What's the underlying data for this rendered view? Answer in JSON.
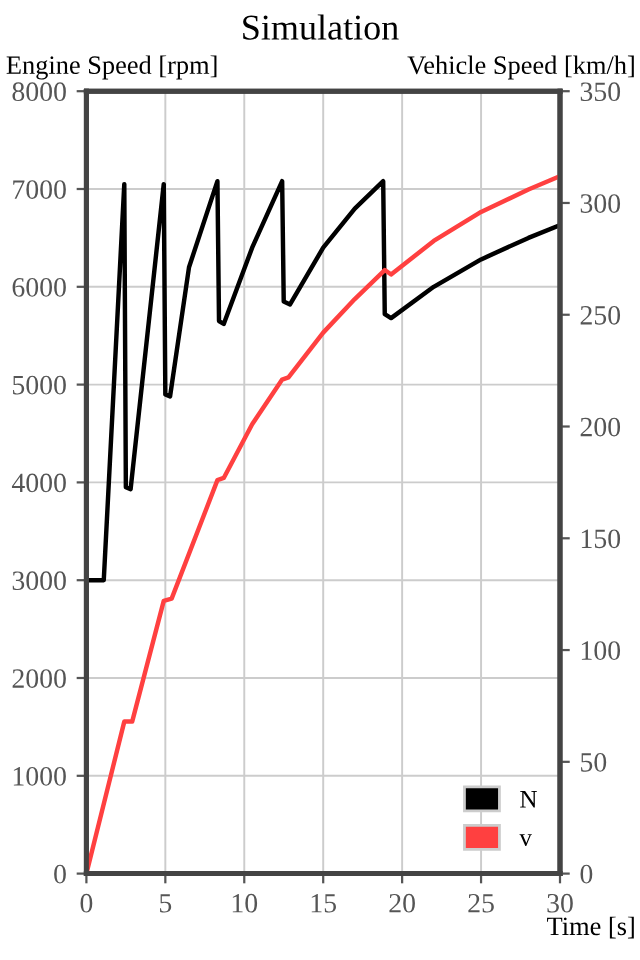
{
  "chart_data": {
    "type": "line",
    "title": "Simulation",
    "ylabel": "Engine Speed [rpm]",
    "y2label": "Vehicle Speed [km/h]",
    "xlabel": "Time [s]",
    "xlim": [
      0,
      30
    ],
    "xticks": [
      0,
      5,
      10,
      15,
      20,
      25,
      30
    ],
    "ylim": [
      0,
      8000
    ],
    "yticks": [
      0,
      1000,
      2000,
      3000,
      4000,
      5000,
      6000,
      7000,
      8000
    ],
    "y2lim": [
      0,
      350
    ],
    "y2ticks": [
      0,
      50,
      100,
      150,
      200,
      250,
      300,
      350
    ],
    "grid": true,
    "legend": "bottom right",
    "marker": "none",
    "line_style": "solid",
    "series": [
      {
        "name": "N",
        "color": "#000000",
        "x": [
          0,
          1.1,
          2.4,
          2.5,
          2.8,
          4.9,
          5.0,
          5.3,
          6.5,
          8.3,
          8.4,
          8.7,
          10.5,
          12.4,
          12.5,
          12.9,
          15,
          17,
          18.8,
          18.9,
          19.3,
          22,
          25,
          28,
          30
        ],
        "values": [
          3000,
          3000,
          7050,
          3950,
          3930,
          7050,
          4900,
          4880,
          6200,
          7080,
          5650,
          5620,
          6400,
          7080,
          5850,
          5820,
          6400,
          6800,
          7080,
          5720,
          5680,
          6000,
          6280,
          6500,
          6630
        ]
      },
      {
        "name": "v",
        "color": "#ff4040",
        "axis": "y2",
        "x": [
          0,
          2.4,
          2.9,
          4.9,
          5.4,
          8.3,
          8.7,
          10.5,
          12.4,
          12.8,
          15,
          17,
          18.9,
          19.3,
          22,
          25,
          28,
          30
        ],
        "values": [
          0,
          68,
          68,
          122,
          123,
          176,
          177,
          201,
          221,
          222,
          242,
          257,
          270,
          268,
          283,
          296,
          306,
          312
        ]
      }
    ]
  }
}
